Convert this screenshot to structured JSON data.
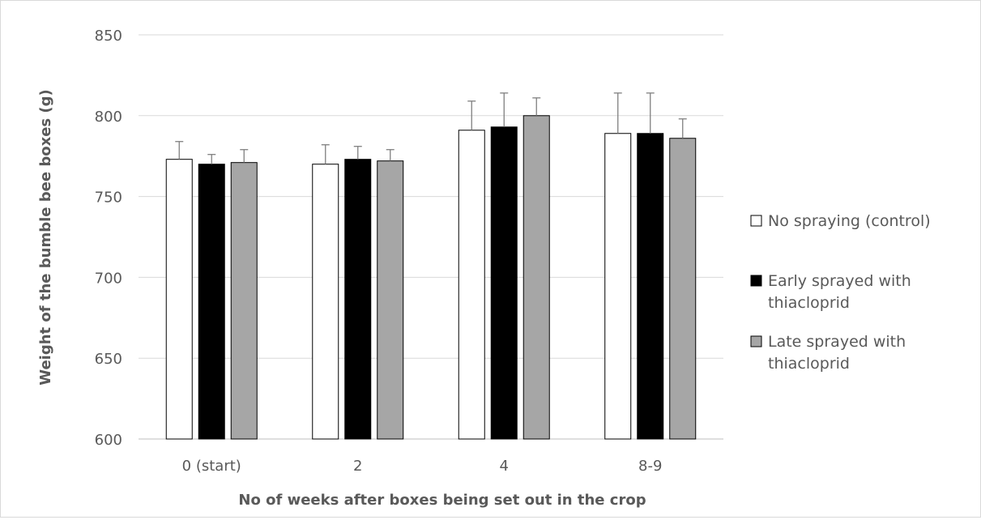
{
  "chart_data": {
    "type": "bar",
    "title": "",
    "xlabel": "No of weeks after boxes being set out in the crop",
    "ylabel": "Weight of the bumble bee  boxes (g)",
    "ylim": [
      600,
      850
    ],
    "yticks": [
      600,
      650,
      700,
      750,
      800,
      850
    ],
    "grid": true,
    "legend_position": "right",
    "categories": [
      "0 (start)",
      "2",
      "4",
      "8-9"
    ],
    "series": [
      {
        "name": "No spraying (control)",
        "color": "#ffffff",
        "values": [
          773,
          770,
          791,
          789
        ],
        "error": [
          11,
          12,
          18,
          25
        ]
      },
      {
        "name": "Early sprayed with thiacloprid",
        "name_lines": [
          "Early sprayed with",
          "thiacloprid"
        ],
        "color": "#000000",
        "values": [
          770,
          773,
          793,
          789
        ],
        "error": [
          6,
          8,
          21,
          25
        ]
      },
      {
        "name": "Late sprayed with thiacloprid",
        "name_lines": [
          "Late sprayed with",
          "thiacloprid"
        ],
        "color": "#a6a6a6",
        "values": [
          771,
          772,
          800,
          786
        ],
        "error": [
          8,
          7,
          11,
          12
        ]
      }
    ]
  }
}
